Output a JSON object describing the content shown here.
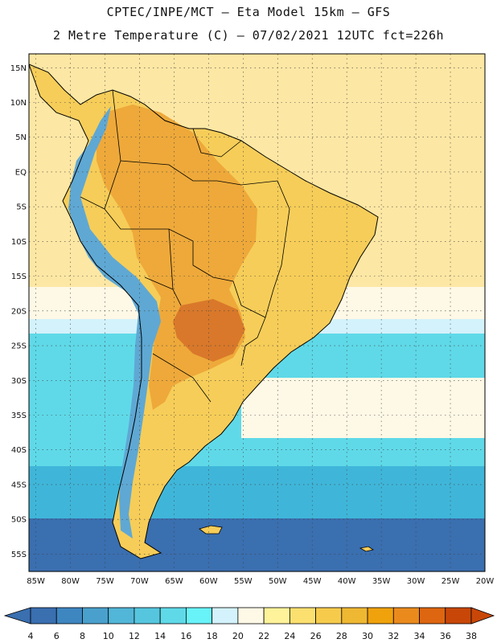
{
  "header": {
    "line1": "CPTEC/INPE/MCT –  Eta Model 15km – GFS",
    "line2": "2 Metre Temperature (C) – 07/02/2021 12UTC fct=226h"
  },
  "map": {
    "lat_labels": [
      "15N",
      "10N",
      "5N",
      "EQ",
      "5S",
      "10S",
      "15S",
      "20S",
      "25S",
      "30S",
      "35S",
      "40S",
      "45S",
      "50S",
      "55S"
    ],
    "lon_labels": [
      "85W",
      "80W",
      "75W",
      "70W",
      "65W",
      "60W",
      "55W",
      "50W",
      "45W",
      "40W",
      "35W",
      "30W",
      "25W",
      "20W"
    ],
    "lat_range": [
      17,
      -57.5
    ],
    "lon_range": [
      -86,
      -20
    ]
  },
  "colorbar": {
    "ticks": [
      "4",
      "6",
      "8",
      "10",
      "12",
      "14",
      "16",
      "18",
      "20",
      "22",
      "24",
      "26",
      "28",
      "30",
      "32",
      "34",
      "36",
      "38"
    ],
    "colors": [
      "#3a6fb0",
      "#3e86c0",
      "#4aa0cc",
      "#52b6d8",
      "#56c6df",
      "#5fd9e8",
      "#68f3f8",
      "#d3f2fb",
      "#fef8e6",
      "#fef29a",
      "#fbe070",
      "#f6cb4c",
      "#efb832",
      "#f0a20c",
      "#ea8a1d",
      "#de6610",
      "#c84708"
    ],
    "low_color": "#3a6fb0",
    "high_color": "#c84708"
  },
  "palette": {
    "ocean_tropical": "#fde7a4",
    "ocean_subtropical": "#fef8e6",
    "ocean_cool": "#d3f2fb",
    "ocean_cold": "#5fd9e8",
    "ocean_colder": "#3fb6d9",
    "ocean_coldest": "#3a6fb0",
    "land_warm": "#f6cd58",
    "land_hot": "#eea93a",
    "land_hottest": "#d9782a",
    "andes": "#5fa8d4",
    "coast": "#000000"
  }
}
